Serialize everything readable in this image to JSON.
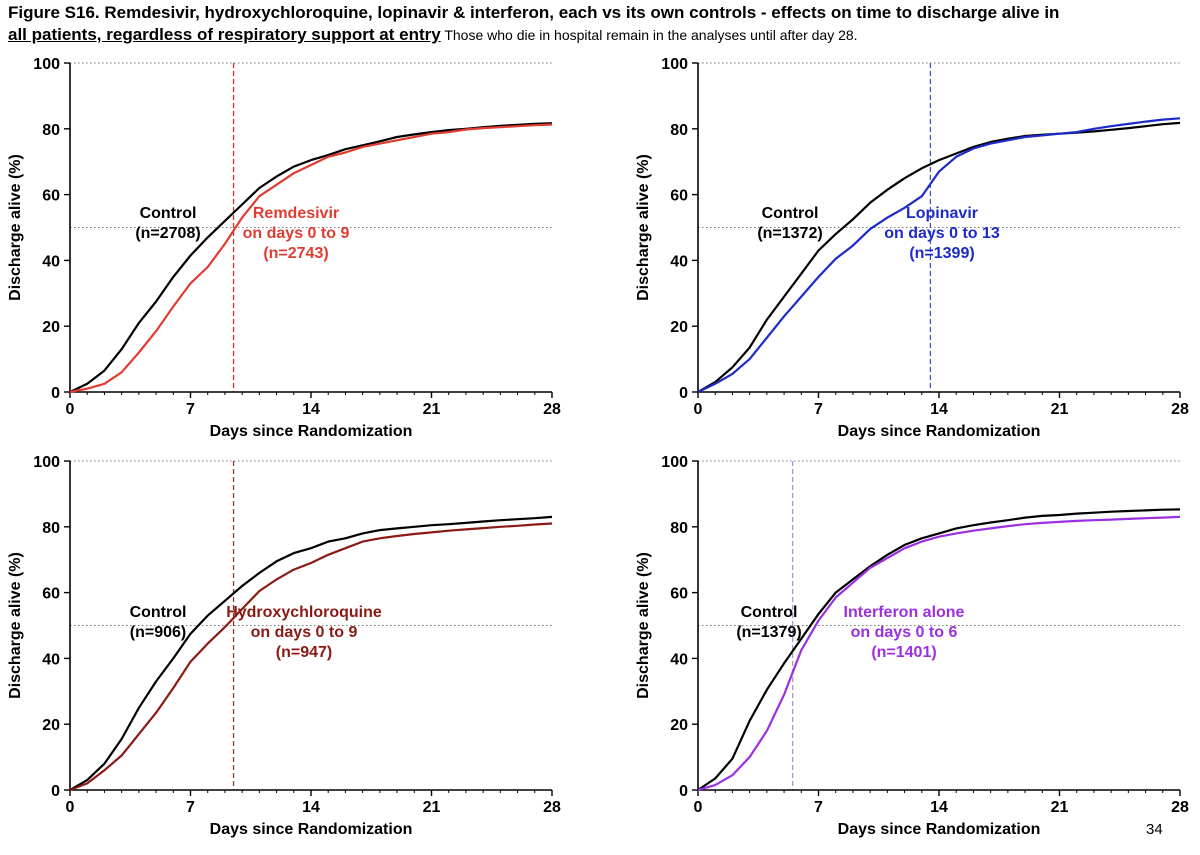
{
  "header": {
    "title_line1": "Figure S16. Remdesivir, hydroxychloroquine, lopinavir & interferon, each vs its own controls - effects on time to discharge alive in",
    "title_line2_underlined": "all patients, regardless of respiratory support at entry",
    "title_note": " Those who die in hospital remain in the analyses until after day 28."
  },
  "page_number": "34",
  "chart_data": [
    {
      "type": "line",
      "xlabel": "Days since Randomization",
      "ylabel": "Discharge alive (%)",
      "xlim": [
        0,
        28
      ],
      "ylim": [
        0,
        100
      ],
      "xticks": [
        0,
        7,
        14,
        21,
        28
      ],
      "yticks": [
        0,
        20,
        40,
        60,
        80,
        100
      ],
      "reference_lines": {
        "horizontal_dotted": [
          50,
          100
        ],
        "vertical_dashed_day": 9.5,
        "vertical_dashed_color": "#c0392b"
      },
      "series": [
        {
          "name": "Control",
          "label_lines": [
            "Control",
            "(n=2708)"
          ],
          "color": "#000000",
          "x": [
            0,
            1,
            2,
            3,
            4,
            5,
            6,
            7,
            8,
            9,
            10,
            11,
            12,
            13,
            14,
            15,
            16,
            17,
            18,
            19,
            20,
            21,
            22,
            23,
            24,
            25,
            26,
            27,
            28
          ],
          "y": [
            0,
            2.5,
            6.5,
            13,
            21,
            27.5,
            35,
            41.5,
            47,
            52,
            57,
            62,
            65.5,
            68.5,
            70.5,
            72,
            73.8,
            75,
            76.2,
            77.5,
            78.3,
            79,
            79.6,
            80,
            80.5,
            80.9,
            81.2,
            81.5,
            81.7
          ]
        },
        {
          "name": "Remdesivir",
          "label_lines": [
            "Remdesivir",
            "on days 0 to 9",
            "(n=2743)"
          ],
          "color": "#e03c31",
          "x": [
            0,
            1,
            2,
            3,
            4,
            5,
            6,
            7,
            8,
            9,
            10,
            11,
            12,
            13,
            14,
            15,
            16,
            17,
            18,
            19,
            20,
            21,
            22,
            23,
            24,
            25,
            26,
            27,
            28
          ],
          "y": [
            0,
            1,
            2.5,
            6,
            12,
            18.5,
            26,
            33,
            38,
            45,
            53,
            59.5,
            63,
            66.5,
            69,
            71.5,
            72.8,
            74.5,
            75.5,
            76.5,
            77.5,
            78.5,
            79,
            79.8,
            80.2,
            80.5,
            80.8,
            81.1,
            81.3
          ]
        }
      ]
    },
    {
      "type": "line",
      "xlabel": "Days since Randomization",
      "ylabel": "Discharge alive (%)",
      "xlim": [
        0,
        28
      ],
      "ylim": [
        0,
        100
      ],
      "xticks": [
        0,
        7,
        14,
        21,
        28
      ],
      "yticks": [
        0,
        20,
        40,
        60,
        80,
        100
      ],
      "reference_lines": {
        "horizontal_dotted": [
          50,
          100
        ],
        "vertical_dashed_day": 13.5,
        "vertical_dashed_color": "#4353c4"
      },
      "series": [
        {
          "name": "Control",
          "label_lines": [
            "Control",
            "(n=1372)"
          ],
          "color": "#000000",
          "x": [
            0,
            1,
            2,
            3,
            4,
            5,
            6,
            7,
            8,
            9,
            10,
            11,
            12,
            13,
            14,
            15,
            16,
            17,
            18,
            19,
            20,
            21,
            22,
            23,
            24,
            25,
            26,
            27,
            28
          ],
          "y": [
            0,
            3,
            7.5,
            13.5,
            22,
            29,
            36,
            43,
            48,
            52.5,
            57.5,
            61.5,
            65,
            68,
            70.5,
            72.5,
            74.5,
            76,
            77,
            77.8,
            78.2,
            78.5,
            78.8,
            79.2,
            79.7,
            80.2,
            80.8,
            81.4,
            81.8
          ]
        },
        {
          "name": "Lopinavir",
          "label_lines": [
            "Lopinavir",
            "on days 0 to 13",
            "(n=1399)"
          ],
          "color": "#1c2bc8",
          "x": [
            0,
            1,
            2,
            3,
            4,
            5,
            6,
            7,
            8,
            9,
            10,
            11,
            12,
            13,
            14,
            15,
            16,
            17,
            18,
            19,
            20,
            21,
            22,
            23,
            24,
            25,
            26,
            27,
            28
          ],
          "y": [
            0,
            2.5,
            5.5,
            10,
            16.5,
            23,
            29,
            35,
            40.5,
            44.5,
            49.5,
            53,
            56,
            59.5,
            67,
            71.5,
            74,
            75.5,
            76.5,
            77.5,
            78,
            78.5,
            79,
            80,
            80.8,
            81.5,
            82.2,
            82.8,
            83.2
          ]
        }
      ]
    },
    {
      "type": "line",
      "xlabel": "Days since Randomization",
      "ylabel": "Discharge alive (%)",
      "xlim": [
        0,
        28
      ],
      "ylim": [
        0,
        100
      ],
      "xticks": [
        0,
        7,
        14,
        21,
        28
      ],
      "yticks": [
        0,
        20,
        40,
        60,
        80,
        100
      ],
      "reference_lines": {
        "horizontal_dotted": [
          50,
          100
        ],
        "vertical_dashed_day": 9.5,
        "vertical_dashed_color": "#8b3a2e"
      },
      "series": [
        {
          "name": "Control",
          "label_lines": [
            "Control",
            "(n=906)"
          ],
          "color": "#000000",
          "x": [
            0,
            1,
            2,
            3,
            4,
            5,
            6,
            7,
            8,
            9,
            10,
            11,
            12,
            13,
            14,
            15,
            16,
            17,
            18,
            19,
            20,
            21,
            22,
            23,
            24,
            25,
            26,
            27,
            28
          ],
          "y": [
            0,
            3,
            8,
            15.5,
            25,
            33,
            40,
            47.5,
            53,
            57.5,
            62,
            66,
            69.5,
            72,
            73.5,
            75.5,
            76.5,
            78,
            79,
            79.5,
            80,
            80.5,
            80.8,
            81.2,
            81.6,
            82,
            82.3,
            82.6,
            83
          ]
        },
        {
          "name": "Hydroxychloroquine",
          "label_lines": [
            "Hydroxychloroquine",
            "on days 0 to 9",
            "(n=947)"
          ],
          "color": "#8b1a14",
          "x": [
            0,
            1,
            2,
            3,
            4,
            5,
            6,
            7,
            8,
            9,
            10,
            11,
            12,
            13,
            14,
            15,
            16,
            17,
            18,
            19,
            20,
            21,
            22,
            23,
            24,
            25,
            26,
            27,
            28
          ],
          "y": [
            0,
            2,
            6,
            10.5,
            17,
            23.5,
            31,
            39,
            44.5,
            49.5,
            55,
            60.5,
            64,
            67,
            69,
            71.5,
            73.5,
            75.5,
            76.5,
            77.2,
            77.8,
            78.3,
            78.8,
            79.2,
            79.6,
            80,
            80.3,
            80.7,
            81
          ]
        }
      ]
    },
    {
      "type": "line",
      "xlabel": "Days since Randomization",
      "ylabel": "Discharge alive (%)",
      "xlim": [
        0,
        28
      ],
      "ylim": [
        0,
        100
      ],
      "xticks": [
        0,
        7,
        14,
        21,
        28
      ],
      "yticks": [
        0,
        20,
        40,
        60,
        80,
        100
      ],
      "reference_lines": {
        "horizontal_dotted": [
          50,
          100
        ],
        "vertical_dashed_day": 5.5,
        "vertical_dashed_color": "#b98be0"
      },
      "series": [
        {
          "name": "Control",
          "label_lines": [
            "Control",
            "(n=1379)"
          ],
          "color": "#000000",
          "x": [
            0,
            1,
            2,
            3,
            4,
            5,
            6,
            7,
            8,
            9,
            10,
            11,
            12,
            13,
            14,
            15,
            16,
            17,
            18,
            19,
            20,
            21,
            22,
            23,
            24,
            25,
            26,
            27,
            28
          ],
          "y": [
            0,
            3.5,
            9.5,
            21,
            30.5,
            38.5,
            46,
            53.5,
            60,
            64,
            68,
            71.5,
            74.5,
            76.5,
            78,
            79.5,
            80.5,
            81.3,
            82,
            82.8,
            83.3,
            83.6,
            84,
            84.3,
            84.6,
            84.8,
            85,
            85.2,
            85.3
          ]
        },
        {
          "name": "Interferon alone",
          "label_lines": [
            "Interferon alone",
            "on days 0 to 6",
            "(n=1401)"
          ],
          "color": "#9b30e0",
          "x": [
            0,
            1,
            2,
            3,
            4,
            5,
            6,
            7,
            8,
            9,
            10,
            11,
            12,
            13,
            14,
            15,
            16,
            17,
            18,
            19,
            20,
            21,
            22,
            23,
            24,
            25,
            26,
            27,
            28
          ],
          "y": [
            0,
            1.5,
            4.5,
            10,
            18,
            29,
            42.5,
            51.5,
            58.5,
            63,
            67.5,
            70.5,
            73.5,
            75.5,
            77,
            78,
            78.8,
            79.5,
            80.2,
            80.8,
            81.2,
            81.5,
            81.8,
            82,
            82.2,
            82.4,
            82.6,
            82.8,
            83
          ]
        }
      ]
    }
  ]
}
